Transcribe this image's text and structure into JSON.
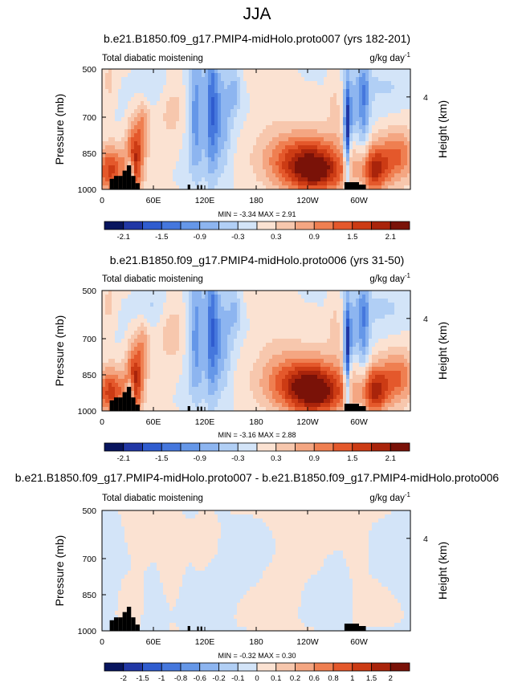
{
  "main_title": "JJA",
  "panels": [
    {
      "title": "b.e21.B1850.f09_g17.PMIP4-midHolo.proto007 (yrs 182-201)",
      "left_label": "Total diabatic moistening",
      "units_label": "g/kg day",
      "units_exp": "-1",
      "ylabel": "Pressure (mb)",
      "right_label": "Height (km)",
      "minmax_text": "MIN = -3.34  MAX = 2.91",
      "colorbar": "full"
    },
    {
      "title": "b.e21.B1850.f09_g17.PMIP4-midHolo.proto006 (yrs 31-50)",
      "left_label": "Total diabatic moistening",
      "units_label": "g/kg day",
      "units_exp": "-1",
      "ylabel": "Pressure (mb)",
      "right_label": "Height (km)",
      "minmax_text": "MIN = -3.16  MAX = 2.88",
      "colorbar": "full"
    },
    {
      "title": "b.e21.B1850.f09_g17.PMIP4-midHolo.proto007 - b.e21.B1850.f09_g17.PMIP4-midHolo.proto006",
      "left_label": "Total diabatic moistening",
      "units_label": "g/kg day",
      "units_exp": "-1",
      "ylabel": "Pressure (mb)",
      "right_label": "Height (km)",
      "minmax_text": "MIN = -0.32  MAX = 0.30",
      "colorbar": "diff"
    }
  ],
  "axes": {
    "x_ticks": [
      {
        "lon": 0,
        "label": "0"
      },
      {
        "lon": 60,
        "label": "60E"
      },
      {
        "lon": 120,
        "label": "120E"
      },
      {
        "lon": 180,
        "label": "180"
      },
      {
        "lon": 240,
        "label": "120W"
      },
      {
        "lon": 300,
        "label": "60W"
      }
    ],
    "y_ticks": [
      {
        "p": 500,
        "label": "500"
      },
      {
        "p": 700,
        "label": "700"
      },
      {
        "p": 850,
        "label": "850"
      },
      {
        "p": 1000,
        "label": "1000"
      }
    ],
    "right_ticks": [
      {
        "km": 4,
        "p": 616,
        "label": "4"
      }
    ],
    "xlim": [
      0,
      360
    ],
    "ylim": [
      1000,
      500
    ]
  },
  "colorbars": {
    "full": {
      "colors": [
        "#08155e",
        "#2137a5",
        "#2f5ccf",
        "#4577dd",
        "#6597e8",
        "#8db5f0",
        "#b1cff5",
        "#d3e4f8",
        "#fbe2d2",
        "#f7c7ad",
        "#f4a682",
        "#ef7f51",
        "#e4582b",
        "#cc3b14",
        "#a9240b",
        "#7a1208"
      ],
      "labels": [
        {
          "i": 1,
          "text": "-2.1"
        },
        {
          "i": 3,
          "text": "-1.5"
        },
        {
          "i": 5,
          "text": "-0.9"
        },
        {
          "i": 7,
          "text": "-0.3"
        },
        {
          "i": 9,
          "text": "0.3"
        },
        {
          "i": 11,
          "text": "0.9"
        },
        {
          "i": 13,
          "text": "1.5"
        },
        {
          "i": 15,
          "text": "2.1"
        }
      ]
    },
    "diff": {
      "colors": [
        "#08155e",
        "#2137a5",
        "#2f5ccf",
        "#4577dd",
        "#6597e8",
        "#8db5f0",
        "#b1cff5",
        "#d3e4f8",
        "#fbe2d2",
        "#f7c7ad",
        "#f4a682",
        "#ef7f51",
        "#e4582b",
        "#cc3b14",
        "#a9240b",
        "#7a1208"
      ],
      "labels": [
        {
          "i": 1,
          "text": "-2"
        },
        {
          "i": 2,
          "text": "-1.5"
        },
        {
          "i": 3,
          "text": "-1"
        },
        {
          "i": 4,
          "text": "-0.8"
        },
        {
          "i": 5,
          "text": "-0.6"
        },
        {
          "i": 6,
          "text": "-0.2"
        },
        {
          "i": 7,
          "text": "-0.1"
        },
        {
          "i": 8,
          "text": "0"
        },
        {
          "i": 9,
          "text": "0.1"
        },
        {
          "i": 10,
          "text": "0.2"
        },
        {
          "i": 11,
          "text": "0.6"
        },
        {
          "i": 12,
          "text": "0.8"
        },
        {
          "i": 13,
          "text": "1"
        },
        {
          "i": 14,
          "text": "1.5"
        },
        {
          "i": 15,
          "text": "2"
        }
      ]
    }
  },
  "chart_data": [
    {
      "type": "heatmap",
      "title": "b.e21.B1850.f09_g17.PMIP4-midHolo.proto007 (yrs 182-201)",
      "xlabel": "",
      "ylabel": "Pressure (mb)",
      "xlim": [
        0,
        360
      ],
      "ylim": [
        1000,
        500
      ],
      "min": -3.34,
      "max": 2.91,
      "blobs": [
        {
          "lon": 10,
          "p": 920,
          "slon": 12,
          "sp": 70,
          "v": 2.2
        },
        {
          "lon": 38,
          "p": 880,
          "slon": 7,
          "sp": 110,
          "v": 2.4
        },
        {
          "lon": 48,
          "p": 730,
          "slon": 6,
          "sp": 80,
          "v": 1.1
        },
        {
          "lon": 33,
          "p": 930,
          "slon": 3,
          "sp": 50,
          "v": -2.2
        },
        {
          "lon": 8,
          "p": 560,
          "slon": 6,
          "sp": 80,
          "v": 0.5
        },
        {
          "lon": 80,
          "p": 660,
          "slon": 12,
          "sp": 120,
          "v": 0.55
        },
        {
          "lon": 110,
          "p": 680,
          "slon": 7,
          "sp": 180,
          "v": -1.6
        },
        {
          "lon": 128,
          "p": 660,
          "slon": 5,
          "sp": 200,
          "v": -1.8
        },
        {
          "lon": 140,
          "p": 700,
          "slon": 8,
          "sp": 150,
          "v": -1.2
        },
        {
          "lon": 155,
          "p": 590,
          "slon": 5,
          "sp": 70,
          "v": -0.9
        },
        {
          "lon": 240,
          "p": 890,
          "slon": 30,
          "sp": 85,
          "v": 2.9
        },
        {
          "lon": 255,
          "p": 935,
          "slon": 22,
          "sp": 55,
          "v": 1.2
        },
        {
          "lon": 272,
          "p": 620,
          "slon": 6,
          "sp": 120,
          "v": 0.45
        },
        {
          "lon": 286,
          "p": 760,
          "slon": 2.5,
          "sp": 150,
          "v": -2.8
        },
        {
          "lon": 292,
          "p": 680,
          "slon": 4,
          "sp": 90,
          "v": -1.1
        },
        {
          "lon": 305,
          "p": 650,
          "slon": 5,
          "sp": 150,
          "v": -1.5
        },
        {
          "lon": 318,
          "p": 920,
          "slon": 11,
          "sp": 70,
          "v": 2.3
        },
        {
          "lon": 345,
          "p": 860,
          "slon": 15,
          "sp": 80,
          "v": 1.7
        },
        {
          "lon": 198,
          "p": 700,
          "slon": 18,
          "sp": 150,
          "v": 0.3
        },
        {
          "lon": 60,
          "p": 560,
          "slon": 15,
          "sp": 60,
          "v": -0.5
        },
        {
          "lon": 325,
          "p": 560,
          "slon": 30,
          "sp": 60,
          "v": -0.45
        }
      ]
    },
    {
      "type": "heatmap",
      "title": "b.e21.B1850.f09_g17.PMIP4-midHolo.proto006 (yrs 31-50)",
      "xlabel": "",
      "ylabel": "Pressure (mb)",
      "xlim": [
        0,
        360
      ],
      "ylim": [
        1000,
        500
      ],
      "min": -3.16,
      "max": 2.88,
      "blobs": [
        {
          "lon": 10,
          "p": 920,
          "slon": 12,
          "sp": 70,
          "v": 2.1
        },
        {
          "lon": 38,
          "p": 880,
          "slon": 7,
          "sp": 110,
          "v": 2.3
        },
        {
          "lon": 48,
          "p": 730,
          "slon": 6,
          "sp": 80,
          "v": 1.0
        },
        {
          "lon": 33,
          "p": 930,
          "slon": 3,
          "sp": 50,
          "v": -2.0
        },
        {
          "lon": 8,
          "p": 560,
          "slon": 6,
          "sp": 80,
          "v": 0.5
        },
        {
          "lon": 80,
          "p": 660,
          "slon": 12,
          "sp": 120,
          "v": 0.6
        },
        {
          "lon": 110,
          "p": 680,
          "slon": 7,
          "sp": 180,
          "v": -1.5
        },
        {
          "lon": 128,
          "p": 660,
          "slon": 5,
          "sp": 200,
          "v": -1.7
        },
        {
          "lon": 140,
          "p": 700,
          "slon": 8,
          "sp": 150,
          "v": -1.1
        },
        {
          "lon": 155,
          "p": 590,
          "slon": 5,
          "sp": 70,
          "v": -0.8
        },
        {
          "lon": 240,
          "p": 890,
          "slon": 30,
          "sp": 85,
          "v": 2.85
        },
        {
          "lon": 255,
          "p": 935,
          "slon": 22,
          "sp": 55,
          "v": 1.2
        },
        {
          "lon": 272,
          "p": 620,
          "slon": 6,
          "sp": 120,
          "v": 0.45
        },
        {
          "lon": 286,
          "p": 760,
          "slon": 2.5,
          "sp": 150,
          "v": -2.6
        },
        {
          "lon": 292,
          "p": 680,
          "slon": 4,
          "sp": 90,
          "v": -1.0
        },
        {
          "lon": 305,
          "p": 650,
          "slon": 5,
          "sp": 150,
          "v": -1.4
        },
        {
          "lon": 318,
          "p": 920,
          "slon": 11,
          "sp": 70,
          "v": 2.2
        },
        {
          "lon": 345,
          "p": 860,
          "slon": 15,
          "sp": 80,
          "v": 1.6
        },
        {
          "lon": 198,
          "p": 700,
          "slon": 18,
          "sp": 150,
          "v": 0.35
        },
        {
          "lon": 60,
          "p": 560,
          "slon": 15,
          "sp": 60,
          "v": -0.5
        },
        {
          "lon": 325,
          "p": 560,
          "slon": 30,
          "sp": 60,
          "v": -0.45
        }
      ]
    },
    {
      "type": "heatmap",
      "title": "b.e21.B1850.f09_g17.PMIP4-midHolo.proto007 - b.e21.B1850.f09_g17.PMIP4-midHolo.proto006",
      "xlabel": "",
      "ylabel": "Pressure (mb)",
      "xlim": [
        0,
        360
      ],
      "ylim": [
        1000,
        500
      ],
      "min": -0.32,
      "max": 0.3,
      "blobs": [
        {
          "lon": 12,
          "p": 700,
          "slon": 6,
          "sp": 140,
          "v": -0.08
        },
        {
          "lon": 45,
          "p": 620,
          "slon": 12,
          "sp": 70,
          "v": 0.08
        },
        {
          "lon": 60,
          "p": 900,
          "slon": 8,
          "sp": 80,
          "v": -0.08
        },
        {
          "lon": 85,
          "p": 700,
          "slon": 10,
          "sp": 120,
          "v": 0.07
        },
        {
          "lon": 100,
          "p": 820,
          "slon": 6,
          "sp": 100,
          "v": -0.06
        },
        {
          "lon": 122,
          "p": 580,
          "slon": 6,
          "sp": 70,
          "v": 0.08
        },
        {
          "lon": 130,
          "p": 860,
          "slon": 8,
          "sp": 90,
          "v": -0.07
        },
        {
          "lon": 150,
          "p": 750,
          "slon": 10,
          "sp": 100,
          "v": -0.06
        },
        {
          "lon": 175,
          "p": 700,
          "slon": 12,
          "sp": 100,
          "v": -0.07
        },
        {
          "lon": 205,
          "p": 820,
          "slon": 18,
          "sp": 100,
          "v": 0.06
        },
        {
          "lon": 240,
          "p": 560,
          "slon": 30,
          "sp": 50,
          "v": 0.05
        },
        {
          "lon": 270,
          "p": 820,
          "slon": 10,
          "sp": 110,
          "v": -0.06
        },
        {
          "lon": 300,
          "p": 640,
          "slon": 8,
          "sp": 80,
          "v": 0.07
        },
        {
          "lon": 345,
          "p": 700,
          "slon": 14,
          "sp": 130,
          "v": -0.05
        }
      ]
    }
  ],
  "topography": [
    {
      "lon0": 9,
      "lon1": 14,
      "p": 956
    },
    {
      "lon0": 14,
      "lon1": 19,
      "p": 944
    },
    {
      "lon0": 19,
      "lon1": 24,
      "p": 944
    },
    {
      "lon0": 24,
      "lon1": 29,
      "p": 922
    },
    {
      "lon0": 29,
      "lon1": 34,
      "p": 900
    },
    {
      "lon0": 34,
      "lon1": 39,
      "p": 944
    },
    {
      "lon0": 39,
      "lon1": 44,
      "p": 974
    },
    {
      "lon0": 100,
      "lon1": 103,
      "p": 980
    },
    {
      "lon0": 111,
      "lon1": 113,
      "p": 982
    },
    {
      "lon0": 115,
      "lon1": 117,
      "p": 982
    },
    {
      "lon0": 283,
      "lon1": 300,
      "p": 970
    },
    {
      "lon0": 300,
      "lon1": 308,
      "p": 980
    }
  ]
}
